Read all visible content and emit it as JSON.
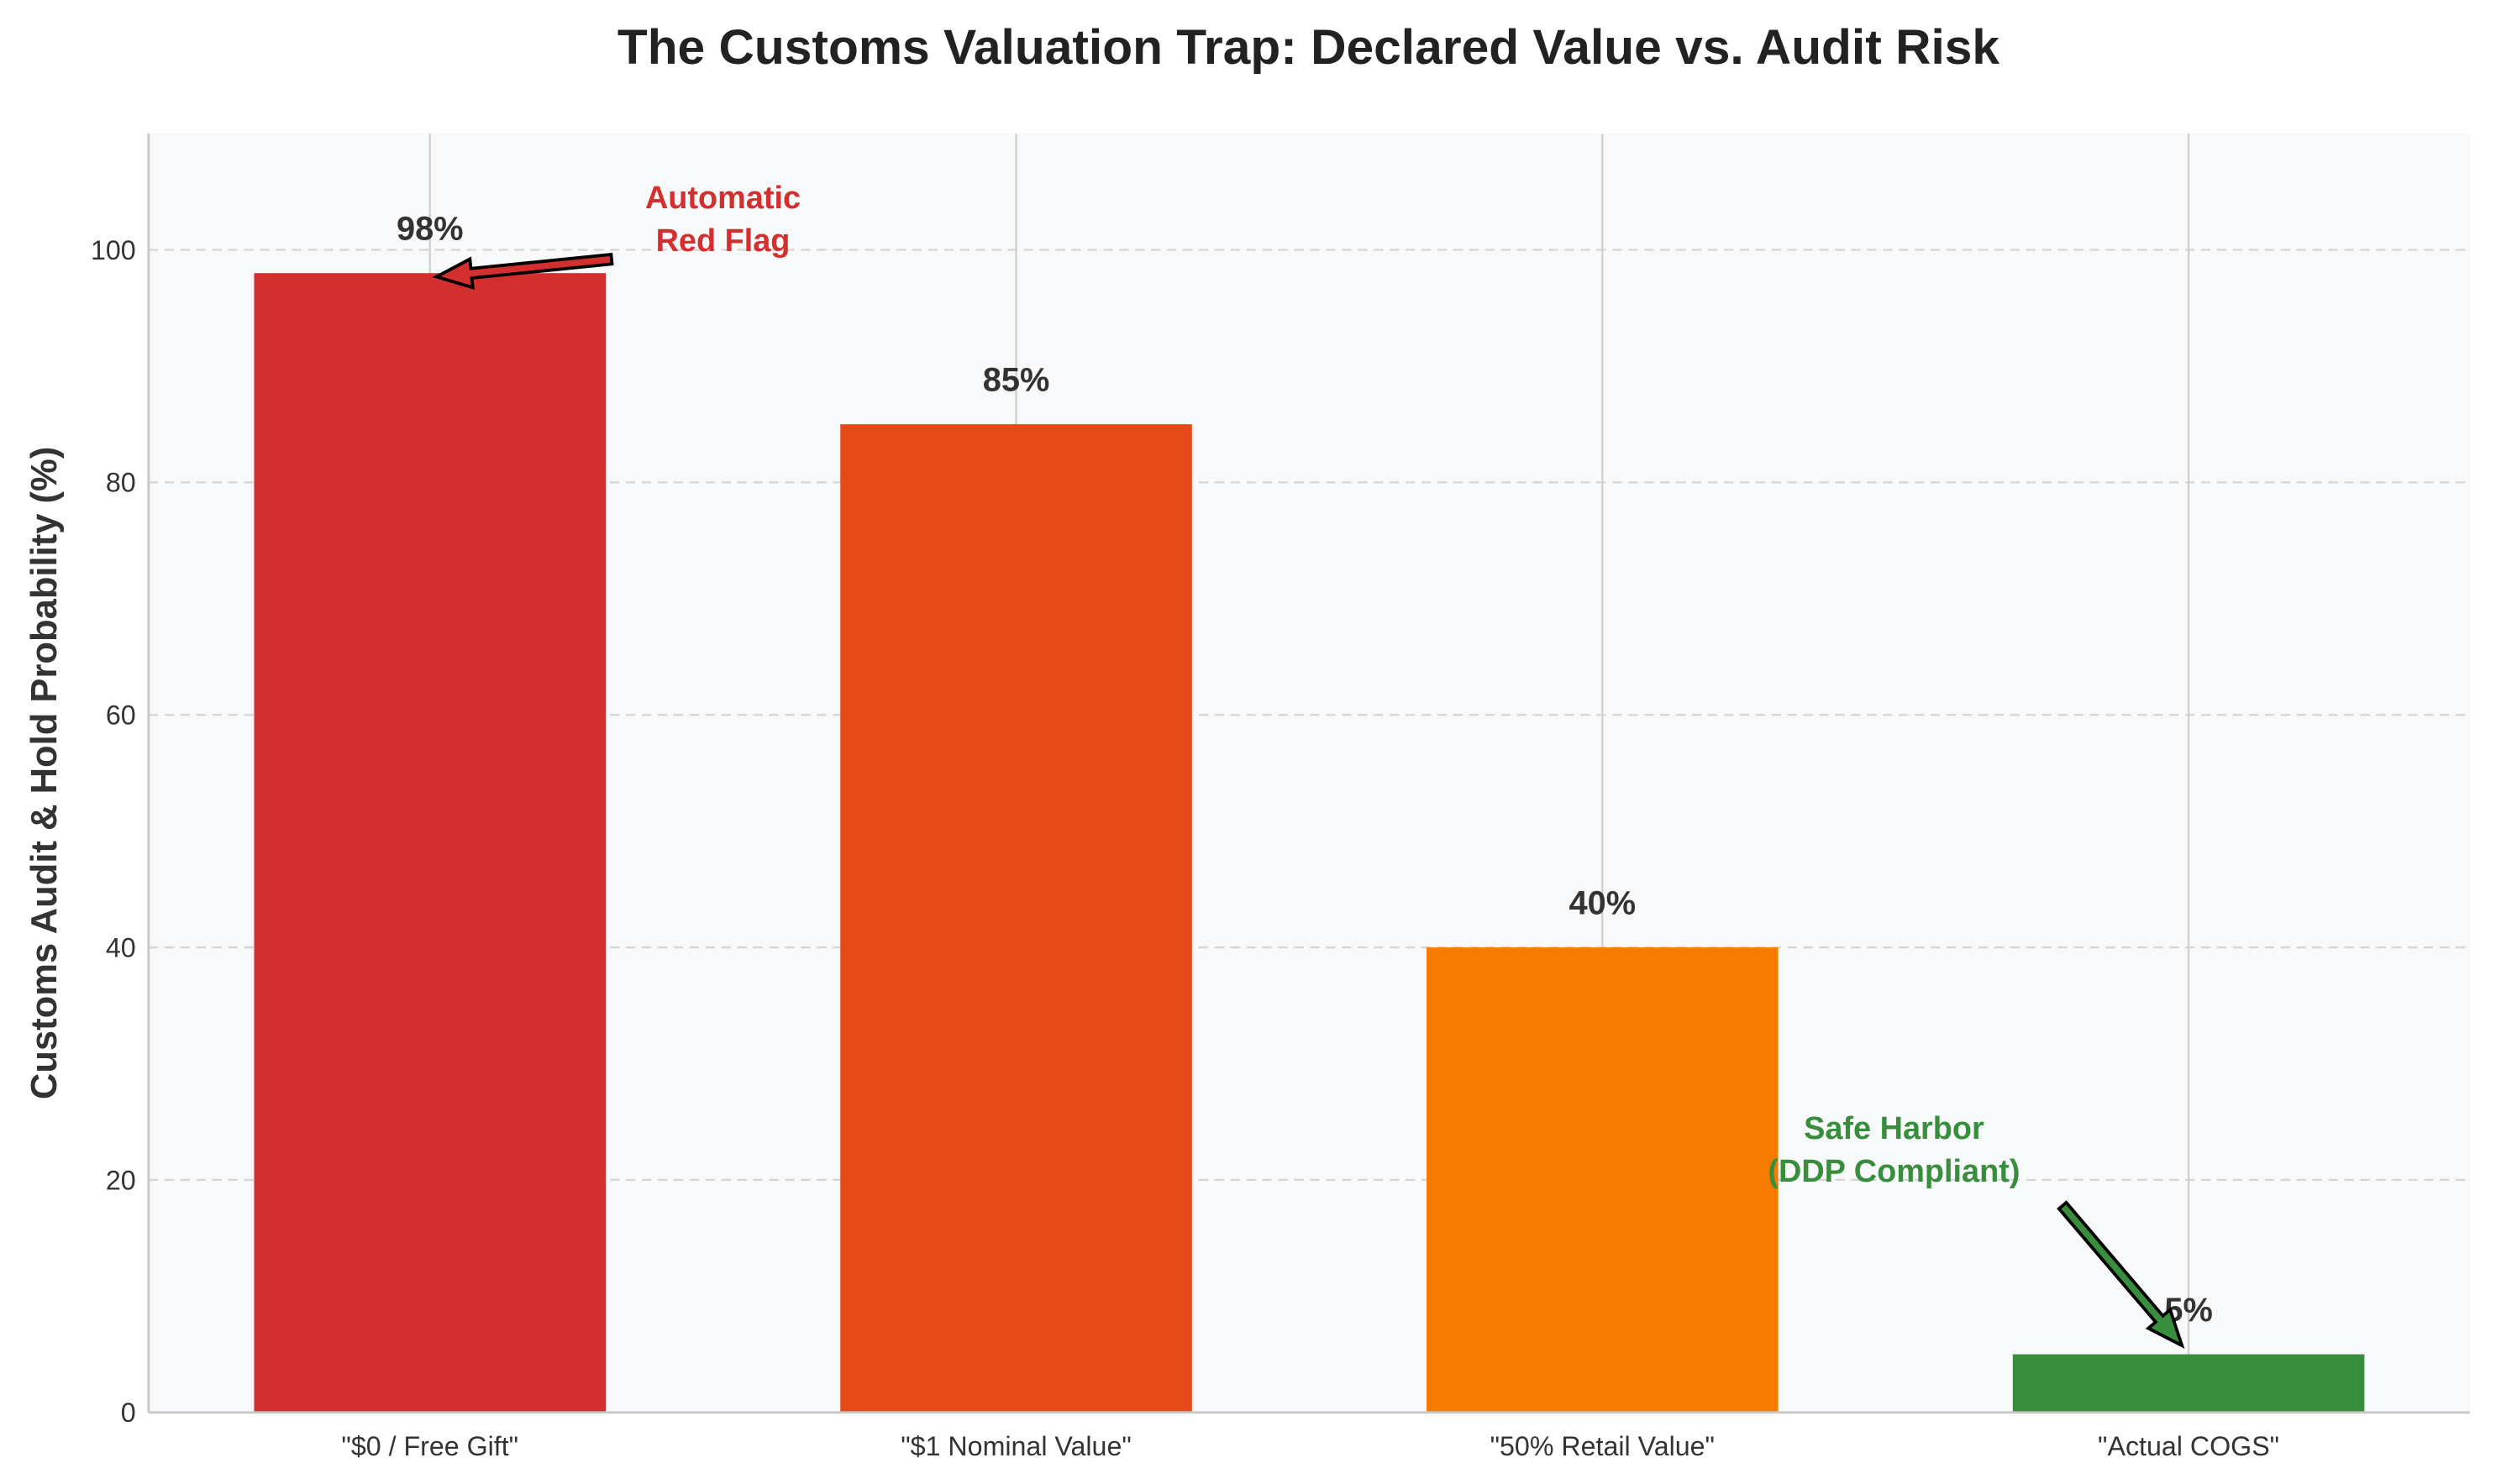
{
  "chart_data": {
    "type": "bar",
    "title": "The Customs Valuation Trap: Declared Value vs. Audit Risk",
    "xlabel": "",
    "ylabel": "Customs Audit & Hold Probability (%)",
    "ylim": [
      0,
      110
    ],
    "yticks": [
      0,
      20,
      40,
      60,
      80,
      100
    ],
    "grid": true,
    "categories": [
      "\"$0 / Free Gift\"",
      "\"$1 Nominal Value\"",
      "\"50% Retail Value\"",
      "\"Actual COGS\""
    ],
    "values": [
      98,
      85,
      40,
      5
    ],
    "data_labels": [
      "98%",
      "85%",
      "40%",
      "5%"
    ],
    "colors": [
      "#D32F2F",
      "#E64A19",
      "#F57C00",
      "#388E3C"
    ],
    "annotations": [
      {
        "lines": [
          "Automatic",
          "Red Flag"
        ],
        "color": "#D32F2F",
        "points_to_category": 0,
        "points_to_value": 98
      },
      {
        "lines": [
          "Safe Harbor",
          "(DDP Compliant)"
        ],
        "color": "#388E3C",
        "points_to_category": 3,
        "points_to_value": 5
      }
    ]
  }
}
